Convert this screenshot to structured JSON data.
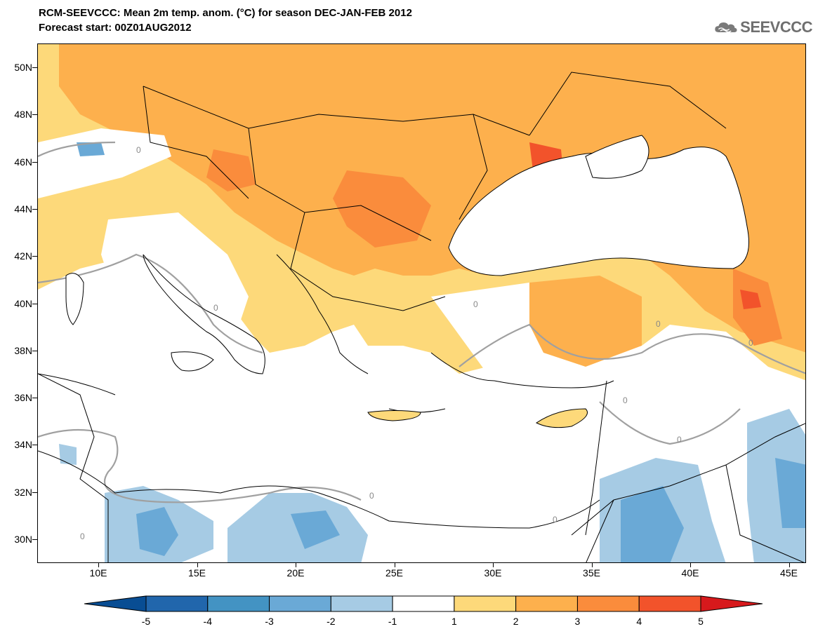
{
  "header": {
    "title": "RCM-SEEVCCC: Mean 2m temp. anom. (°C) for season DEC-JAN-FEB 2012",
    "subtitle": "Forecast start: 00Z01AUG2012",
    "logo_text": "SEEVCCC"
  },
  "map": {
    "variable": "Mean 2m temperature anomaly",
    "units": "°C",
    "lat_labels": [
      "50N",
      "48N",
      "46N",
      "44N",
      "42N",
      "40N",
      "38N",
      "36N",
      "34N",
      "32N",
      "30N"
    ],
    "lon_labels": [
      "10E",
      "15E",
      "20E",
      "25E",
      "30E",
      "35E",
      "40E",
      "45E"
    ],
    "contour_label": "0"
  },
  "colorbar": {
    "levels": [
      "-5",
      "-4",
      "-3",
      "-2",
      "-1",
      "1",
      "2",
      "3",
      "4",
      "5"
    ],
    "colors": [
      "#084d93",
      "#2166ac",
      "#4393c3",
      "#6aa9d6",
      "#a6cbe4",
      "#ffffff",
      "#fdd97a",
      "#fdb04d",
      "#fa8c3c",
      "#f2532b",
      "#d7191c"
    ]
  }
}
